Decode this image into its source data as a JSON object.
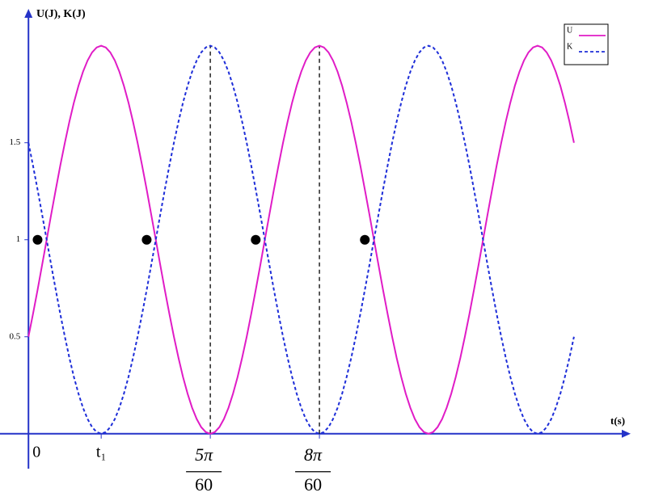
{
  "chart_data": {
    "type": "line",
    "y_label": "U(J), K(J)",
    "x_label": "t(s)",
    "xlim": [
      -0.041,
      0.867
    ],
    "ylim": [
      -0.18,
      2.19
    ],
    "yticks": [
      0.5,
      1,
      1.5
    ],
    "x_labels": [
      {
        "value": 0,
        "label": "0"
      },
      {
        "value": 0.1047,
        "label": "t₁"
      },
      {
        "value": 0.2618,
        "numerator": "5π",
        "denominator": "60"
      },
      {
        "value": 0.4189,
        "numerator": "8π",
        "denominator": "60"
      }
    ],
    "vlines": [
      0.2618,
      0.4189
    ],
    "legend": "upper right",
    "x": [
      0,
      0.0065,
      0.0131,
      0.0196,
      0.0262,
      0.0327,
      0.0393,
      0.0458,
      0.0524,
      0.0589,
      0.0654,
      0.072,
      0.0785,
      0.0851,
      0.0916,
      0.0982,
      0.1047,
      0.1113,
      0.1178,
      0.1244,
      0.1309,
      0.1374,
      0.144,
      0.1505,
      0.1571,
      0.1636,
      0.1702,
      0.1767,
      0.1833,
      0.1898,
      0.1963,
      0.2029,
      0.2094,
      0.216,
      0.2225,
      0.2291,
      0.2356,
      0.2422,
      0.2487,
      0.2553,
      0.2618,
      0.2683,
      0.2749,
      0.2814,
      0.288,
      0.2945,
      0.3011,
      0.3076,
      0.3142,
      0.3207,
      0.3272,
      0.3338,
      0.3403,
      0.3469,
      0.3534,
      0.36,
      0.3665,
      0.3731,
      0.3796,
      0.3862,
      0.3927,
      0.3992,
      0.4058,
      0.4123,
      0.4189,
      0.4254,
      0.432,
      0.4385,
      0.4451,
      0.4516,
      0.4581,
      0.4647,
      0.4712,
      0.4778,
      0.4843,
      0.4909,
      0.4974,
      0.504,
      0.5105,
      0.5171,
      0.5236,
      0.5301,
      0.5367,
      0.5432,
      0.5498,
      0.5563,
      0.5629,
      0.5694,
      0.576,
      0.5825,
      0.589,
      0.5956,
      0.6021,
      0.6087,
      0.6152,
      0.6218,
      0.6283,
      0.6349,
      0.6414,
      0.648,
      0.6545,
      0.661,
      0.6676,
      0.6741,
      0.6807,
      0.6872,
      0.6938,
      0.7003,
      0.7069,
      0.7134,
      0.7199,
      0.7265,
      0.733,
      0.7396,
      0.7461,
      0.7527,
      0.7592,
      0.7658,
      0.7723,
      0.7789,
      0.7854
    ],
    "series": [
      {
        "name": "U",
        "color": "#e01cc6",
        "dashed": false,
        "values": [
          0.5,
          0.6173,
          0.7412,
          0.8695,
          1,
          1.1305,
          1.2588,
          1.3827,
          1.5,
          1.6088,
          1.7071,
          1.7934,
          1.866,
          1.9239,
          1.9659,
          1.9914,
          2,
          1.9914,
          1.9659,
          1.9239,
          1.866,
          1.7934,
          1.7071,
          1.6088,
          1.5,
          1.3827,
          1.2588,
          1.1305,
          1,
          0.8695,
          0.7412,
          0.6173,
          0.5,
          0.3912,
          0.2929,
          0.2066,
          0.134,
          0.0761,
          0.0341,
          0.0086,
          0,
          0.0086,
          0.0341,
          0.0761,
          0.134,
          0.2066,
          0.2929,
          0.3912,
          0.5,
          0.6173,
          0.7412,
          0.8695,
          1,
          1.1305,
          1.2588,
          1.3827,
          1.5,
          1.6088,
          1.7071,
          1.7934,
          1.866,
          1.9239,
          1.9659,
          1.9914,
          2,
          1.9914,
          1.9659,
          1.9239,
          1.866,
          1.7934,
          1.7071,
          1.6088,
          1.5,
          1.3827,
          1.2588,
          1.1305,
          1,
          0.8695,
          0.7412,
          0.6173,
          0.5,
          0.3912,
          0.2929,
          0.2066,
          0.134,
          0.0761,
          0.0341,
          0.0086,
          0,
          0.0086,
          0.0341,
          0.0761,
          0.134,
          0.2066,
          0.2929,
          0.3912,
          0.5,
          0.6173,
          0.7412,
          0.8695,
          1,
          1.1305,
          1.2588,
          1.3827,
          1.5,
          1.6088,
          1.7071,
          1.7934,
          1.866,
          1.9239,
          1.9659,
          1.9914,
          2,
          1.9914,
          1.9659,
          1.9239,
          1.866,
          1.7934,
          1.7071,
          1.6088,
          1.5
        ]
      },
      {
        "name": "K",
        "color": "#1e2ed8",
        "dashed": true,
        "values": [
          1.5,
          1.3827,
          1.2588,
          1.1305,
          1,
          0.8695,
          0.7412,
          0.6173,
          0.5,
          0.3912,
          0.2929,
          0.2066,
          0.134,
          0.0761,
          0.0341,
          0.0086,
          0,
          0.0086,
          0.0341,
          0.0761,
          0.134,
          0.2066,
          0.2929,
          0.3912,
          0.5,
          0.6173,
          0.7412,
          0.8695,
          1,
          1.1305,
          1.2588,
          1.3827,
          1.5,
          1.6088,
          1.7071,
          1.7934,
          1.866,
          1.9239,
          1.9659,
          1.9914,
          2,
          1.9914,
          1.9659,
          1.9239,
          1.866,
          1.7934,
          1.7071,
          1.6088,
          1.5,
          1.3827,
          1.2588,
          1.1305,
          1,
          0.8695,
          0.7412,
          0.6173,
          0.5,
          0.3912,
          0.2929,
          0.2066,
          0.134,
          0.0761,
          0.0341,
          0.0086,
          0,
          0.0086,
          0.0341,
          0.0761,
          0.134,
          0.2066,
          0.2929,
          0.3912,
          0.5,
          0.6173,
          0.7412,
          0.8695,
          1,
          1.1305,
          1.2588,
          1.3827,
          1.5,
          1.6088,
          1.7071,
          1.7934,
          1.866,
          1.9239,
          1.9659,
          1.9914,
          2,
          1.9914,
          1.9659,
          1.9239,
          1.866,
          1.7934,
          1.7071,
          1.6088,
          1.5,
          1.3827,
          1.2588,
          1.1305,
          1,
          0.8695,
          0.7412,
          0.6173,
          0.5,
          0.3912,
          0.2929,
          0.2066,
          0.134,
          0.0761,
          0.0341,
          0.0086,
          0,
          0.0086,
          0.0341,
          0.0761,
          0.134,
          0.2066,
          0.2929,
          0.3912,
          0.5
        ]
      }
    ],
    "points": {
      "color": "#000000",
      "x": [
        0.0131,
        0.1702,
        0.3272,
        0.4843
      ],
      "values": [
        1,
        1,
        1,
        1
      ]
    }
  }
}
